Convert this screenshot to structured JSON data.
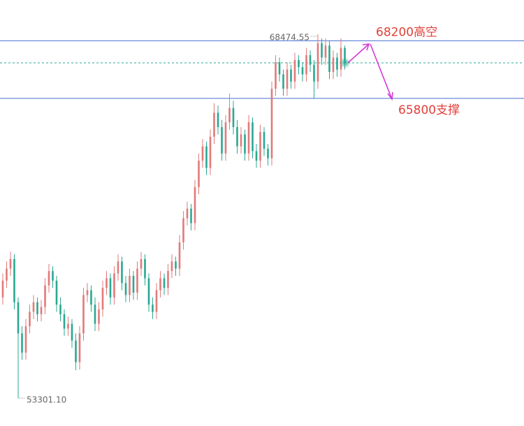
{
  "chart_data": {
    "type": "candlestick",
    "up_color": "#e27a7a",
    "down_color": "#2aa892",
    "ylim": [
      52140,
      69900
    ],
    "open": [
      57500,
      58200,
      58700,
      59100,
      57300,
      56000,
      55200,
      56300,
      56900,
      57300,
      56800,
      57100,
      58000,
      58600,
      58200,
      57200,
      56800,
      56200,
      56400,
      55700,
      54800,
      56000,
      57600,
      57800,
      57200,
      56400,
      57000,
      57900,
      58300,
      57500,
      58500,
      59000,
      58100,
      57600,
      58400,
      57700,
      58700,
      59100,
      58300,
      57200,
      56900,
      57800,
      58300,
      57900,
      58600,
      59000,
      58700,
      59800,
      60800,
      61200,
      60600,
      62100,
      63200,
      63800,
      62900,
      64200,
      65200,
      64600,
      63500,
      64800,
      65400,
      64600,
      63800,
      64300,
      63500,
      64800,
      63600,
      63200,
      64400,
      63700,
      63300,
      66200,
      67300,
      66800,
      66200,
      67000,
      66500,
      67400,
      67100,
      66800,
      67600,
      67200,
      66500,
      68100,
      67500,
      68000,
      66900,
      67500,
      67000,
      67900
    ],
    "high": [
      58500,
      59000,
      59400,
      59300,
      57500,
      56300,
      56600,
      57200,
      57600,
      57500,
      57400,
      58300,
      58900,
      58800,
      58400,
      57500,
      57000,
      56700,
      56600,
      56000,
      56300,
      57900,
      58100,
      58000,
      57500,
      57300,
      58200,
      58600,
      58500,
      58800,
      59300,
      59200,
      58400,
      58700,
      58600,
      59000,
      59400,
      59300,
      58500,
      57500,
      58100,
      58600,
      58500,
      58900,
      59300,
      59200,
      60100,
      61100,
      61500,
      61400,
      62400,
      63500,
      64100,
      64000,
      64500,
      65600,
      65500,
      64900,
      65100,
      66000,
      65700,
      64900,
      64600,
      64500,
      65100,
      65000,
      63900,
      64700,
      64600,
      63900,
      66500,
      67600,
      67500,
      67000,
      67300,
      67200,
      67700,
      67600,
      67300,
      67900,
      67800,
      67400,
      68474.55,
      68300,
      68300,
      68200,
      67800,
      67700,
      68300,
      68000
    ],
    "low": [
      57200,
      57900,
      58400,
      57000,
      53301.1,
      54900,
      54900,
      56000,
      56600,
      56500,
      56500,
      56800,
      57700,
      57900,
      56900,
      56500,
      55900,
      55900,
      55400,
      54470,
      54500,
      55700,
      57300,
      56900,
      56100,
      56100,
      56700,
      57600,
      57200,
      57200,
      58200,
      57800,
      57300,
      57300,
      57400,
      57400,
      58400,
      58000,
      56900,
      56600,
      56600,
      57500,
      57600,
      57600,
      58300,
      58400,
      58400,
      59500,
      60500,
      60300,
      60300,
      61800,
      62900,
      62600,
      62600,
      63900,
      64300,
      63200,
      63200,
      64500,
      64300,
      63500,
      63500,
      63200,
      63200,
      63300,
      62900,
      62900,
      63400,
      63000,
      63000,
      65900,
      66500,
      65900,
      65900,
      66200,
      66200,
      66800,
      66500,
      66500,
      66900,
      65800,
      66200,
      67200,
      67200,
      66600,
      66600,
      66700,
      66700,
      67000
    ],
    "close": [
      58200,
      58700,
      59100,
      57300,
      56000,
      55200,
      56300,
      56900,
      57300,
      56800,
      57100,
      58000,
      58600,
      58200,
      57200,
      56800,
      56200,
      56400,
      55700,
      54800,
      56000,
      57600,
      57800,
      57200,
      56400,
      57000,
      57900,
      58300,
      57500,
      58500,
      59000,
      58100,
      57600,
      58400,
      57700,
      58700,
      59100,
      58300,
      57200,
      56900,
      57800,
      58300,
      57900,
      58600,
      59000,
      58700,
      59800,
      60800,
      61200,
      60600,
      62100,
      63200,
      63800,
      62900,
      64200,
      65200,
      64600,
      63500,
      64800,
      65400,
      64600,
      63800,
      64300,
      63500,
      64800,
      63600,
      63200,
      64400,
      63700,
      63300,
      66200,
      67300,
      66800,
      66200,
      67000,
      66500,
      67400,
      67100,
      66800,
      67600,
      67200,
      66500,
      68100,
      67500,
      68000,
      66900,
      67500,
      67000,
      67900,
      67280
    ],
    "max_label": 68474.55,
    "min_label": {
      "value": 53301.1,
      "label": "53301.10"
    },
    "last_price": 67280,
    "levels": [
      {
        "value": 68200,
        "label": "68200高空",
        "color": "#4a6fd0"
      },
      {
        "value": 65800,
        "label": "65800支撑",
        "color": "#4a6fd0"
      }
    ]
  }
}
